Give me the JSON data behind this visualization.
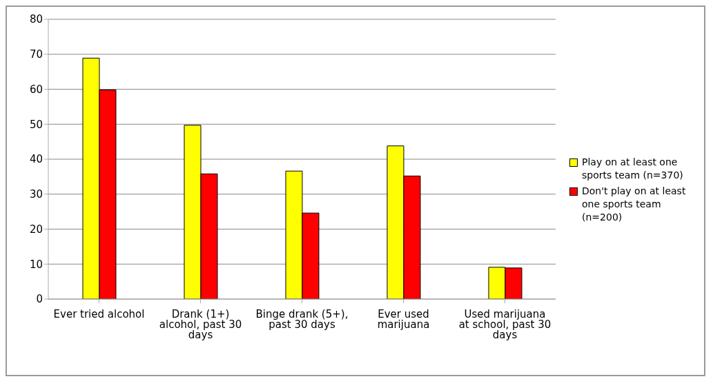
{
  "chart_data": {
    "type": "bar",
    "categories": [
      "Ever tried alcohol",
      "Drank (1+) alcohol, past 30 days",
      "Binge drank (5+), past 30 days",
      "Ever used marijuana",
      "Used marijuana at school, past 30 days"
    ],
    "series": [
      {
        "name": "Play on at least one sports team (n=370)",
        "color": "#ffff00",
        "values": [
          68.9,
          49.7,
          36.6,
          43.8,
          9.1
        ]
      },
      {
        "name": "Don't play on at least one sports team (n=200)",
        "color": "#ff0000",
        "values": [
          59.8,
          35.8,
          24.6,
          35.2,
          8.9
        ]
      }
    ],
    "ylim": [
      0,
      80
    ],
    "yticks": [
      0,
      10,
      20,
      30,
      40,
      50,
      60,
      70,
      80
    ],
    "grid": "y",
    "legend": "right"
  }
}
